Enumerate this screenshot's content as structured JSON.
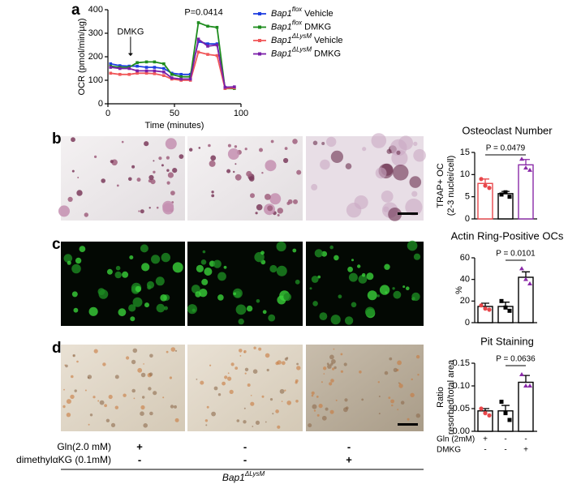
{
  "panels": [
    "a",
    "b",
    "c",
    "d"
  ],
  "chart_data": [
    {
      "type": "line",
      "xlabel": "Time (minutes)",
      "ylabel": "OCR (pmol/min/µg)",
      "annotations": [
        "DMKG",
        "P=0.0414"
      ],
      "x": [
        2,
        9,
        16,
        22,
        29,
        35,
        42,
        48,
        55,
        62,
        68,
        75,
        82,
        88,
        95
      ],
      "xlim": [
        0,
        100
      ],
      "xticks": [
        0,
        50,
        100
      ],
      "ylim": [
        0,
        400
      ],
      "yticks": [
        0,
        100,
        200,
        300,
        400
      ],
      "series": [
        {
          "name": {
            "gene": "Bap1",
            "allele": "flox",
            "treatment": "Vehicle"
          },
          "color": "#1f3fe0",
          "values": [
            170,
            162,
            160,
            160,
            155,
            155,
            150,
            130,
            125,
            125,
            265,
            255,
            255,
            70,
            70
          ]
        },
        {
          "name": {
            "gene": "Bap1",
            "allele": "flox",
            "treatment": "DMKG"
          },
          "color": "#1e8c1e",
          "values": [
            160,
            155,
            155,
            175,
            178,
            178,
            170,
            125,
            115,
            115,
            345,
            330,
            325,
            65,
            65
          ]
        },
        {
          "name": {
            "gene": "Bap1",
            "allele": "ΔLysM",
            "treatment": "Vehicle"
          },
          "color": "#f0585a",
          "values": [
            130,
            125,
            125,
            130,
            130,
            128,
            120,
            105,
            100,
            100,
            220,
            210,
            205,
            65,
            68
          ]
        },
        {
          "name": {
            "gene": "Bap1",
            "allele": "ΔLysM",
            "treatment": "DMKG"
          },
          "color": "#7a1fa8",
          "values": [
            155,
            150,
            150,
            140,
            140,
            140,
            135,
            110,
            105,
            105,
            275,
            245,
            250,
            70,
            72
          ]
        }
      ]
    },
    {
      "type": "bar",
      "title": "Osteoclast Number",
      "ylabel": [
        "TRAP+ OC",
        "(2-3 nuclei/cell)"
      ],
      "annotation": "P = 0.0479",
      "values": [
        8,
        5.7,
        12.2
      ],
      "errors": [
        1,
        0.5,
        1.2
      ],
      "points": [
        [
          9,
          7.5,
          7
        ],
        [
          5.5,
          6,
          5
        ],
        [
          13.5,
          11.5,
          11
        ]
      ],
      "bar_colors": [
        "#e8474b",
        "#000000",
        "#8a2aa8"
      ],
      "point_colors": [
        "#e8474b",
        "#000000",
        "#8a2aa8"
      ],
      "ylim": [
        0,
        15
      ],
      "yticks": [
        0,
        5,
        10,
        15
      ]
    },
    {
      "type": "bar",
      "title": "Actin Ring-Positive OCs",
      "ylabel": [
        "%"
      ],
      "annotation": "P = 0.0101",
      "values": [
        15,
        15,
        42
      ],
      "errors": [
        3,
        4,
        5
      ],
      "points": [
        [
          16,
          13,
          12
        ],
        [
          20,
          14,
          11
        ],
        [
          50,
          40,
          36
        ]
      ],
      "bar_colors": [
        "#000000",
        "#000000",
        "#000000"
      ],
      "point_colors": [
        "#e8474b",
        "#000000",
        "#8a2aa8"
      ],
      "ylim": [
        0,
        60
      ],
      "yticks": [
        0,
        20,
        40,
        60
      ]
    },
    {
      "type": "bar",
      "title": "Pit Staining",
      "ylabel": [
        "Ratio",
        "resorbed/total area"
      ],
      "annotation": "P = 0.0636",
      "values": [
        0.045,
        0.045,
        0.108
      ],
      "errors": [
        0.005,
        0.012,
        0.015
      ],
      "points": [
        [
          0.05,
          0.04,
          0.035
        ],
        [
          0.065,
          0.04,
          0.025
        ],
        [
          0.125,
          0.1,
          0.1
        ]
      ],
      "bar_colors": [
        "#000000",
        "#000000",
        "#000000"
      ],
      "point_colors": [
        "#e8474b",
        "#000000",
        "#8a2aa8"
      ],
      "ylim": [
        0,
        0.15
      ],
      "yticks": [
        {
          "value": 0,
          "label": "0.00"
        },
        {
          "value": 0.05,
          "label": "0.05"
        },
        {
          "value": 0.1,
          "label": "0.10"
        },
        {
          "value": 0.15,
          "label": "0.15"
        }
      ],
      "rows": [
        {
          "label": "Gln (2mM)",
          "signs": [
            "+",
            "-",
            "-"
          ]
        },
        {
          "label": "DMKG",
          "signs": [
            "-",
            "-",
            "+"
          ]
        }
      ]
    }
  ],
  "treatment_rows": [
    {
      "label": "Gln(2.0 mM)",
      "signs": [
        "+",
        "-",
        "-"
      ]
    },
    {
      "label": "dimethylαKG (0.1mM)",
      "signs": [
        "-",
        "-",
        "+"
      ]
    }
  ],
  "genotype": {
    "gene": "Bap1",
    "allele": "ΔLysM"
  }
}
